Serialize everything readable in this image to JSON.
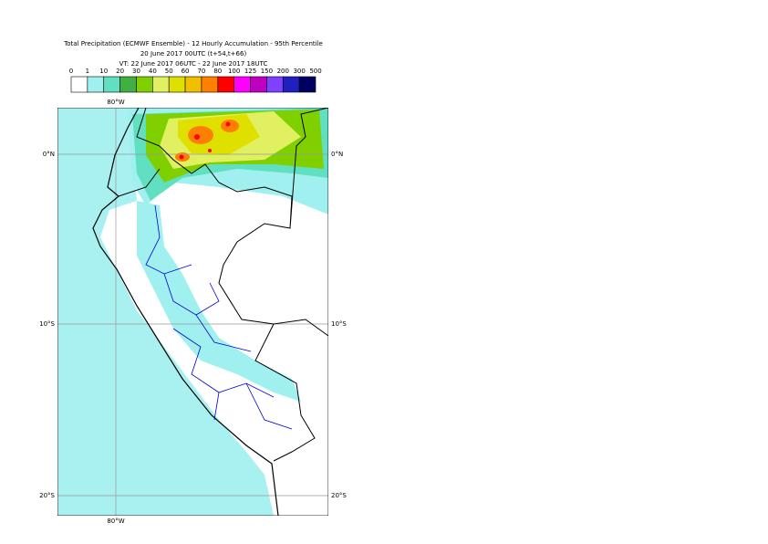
{
  "header": {
    "title": "Total Precipitation (ECMWF Ensemble) - 12 Hourly Accumulation - 95th Percentile",
    "subtitle": "20 June 2017 00UTC (t+54,t+66)",
    "valid_time": "VT: 22 June 2017 06UTC - 22 June 2017 18UTC"
  },
  "colorbar": {
    "levels": [
      0,
      1,
      10,
      20,
      30,
      40,
      50,
      60,
      70,
      80,
      100,
      125,
      150,
      200,
      300,
      500
    ],
    "colors": [
      "#ffffff",
      "#a0f0f0",
      "#60e0c0",
      "#40b040",
      "#80d000",
      "#e0f060",
      "#e0e000",
      "#f0c000",
      "#ff8000",
      "#ff0000",
      "#ff00ff",
      "#c000c0",
      "#8040ff",
      "#2020c0",
      "#000060"
    ]
  },
  "map": {
    "lon_label": "80°W",
    "lat_labels": [
      "0°N",
      "10°S",
      "20°S"
    ]
  }
}
